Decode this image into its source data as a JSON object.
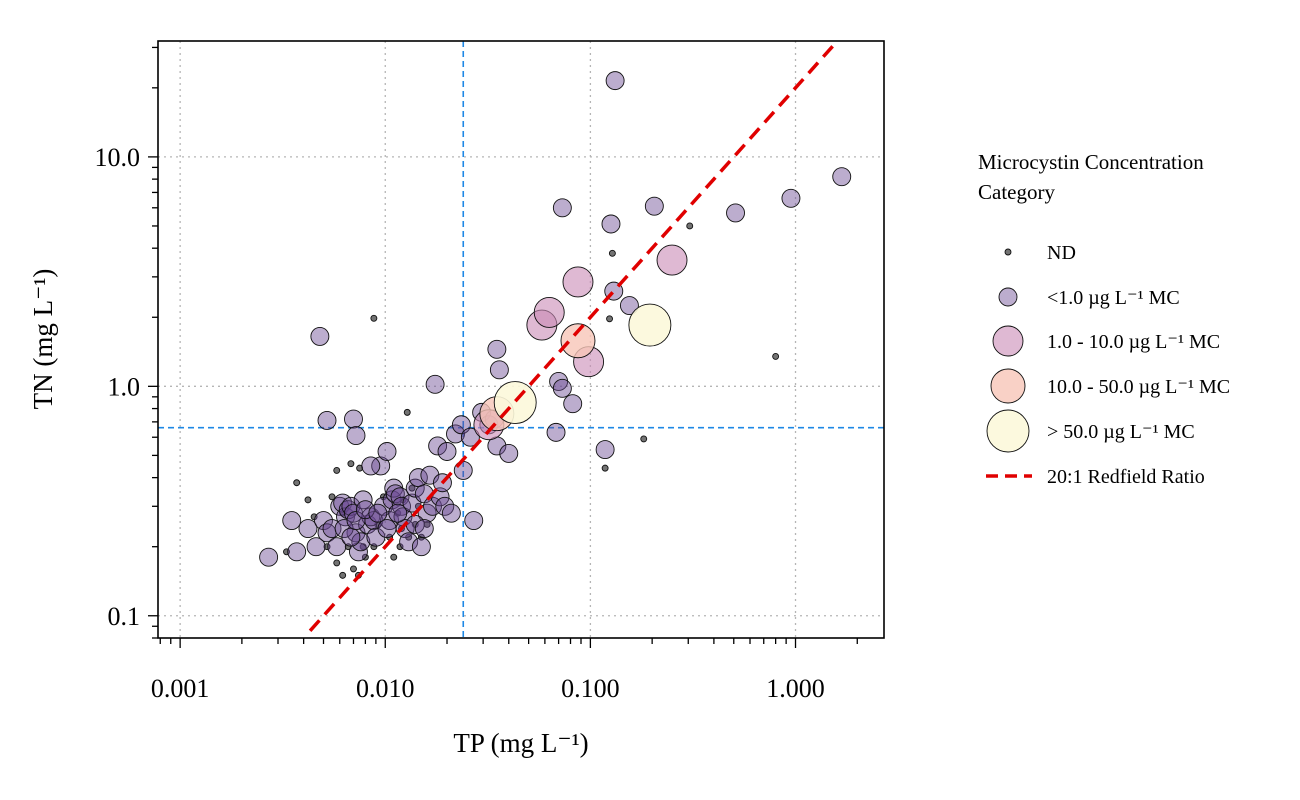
{
  "chart_data": {
    "type": "scatter",
    "xlabel": "TP (mg L⁻¹)",
    "ylabel": "TN (mg L⁻¹)",
    "x_scale": "log",
    "y_scale": "log",
    "xlim": [
      0.00078,
      2.7
    ],
    "ylim": [
      0.08,
      32
    ],
    "x_ticks": [
      "0.001",
      "0.010",
      "0.100",
      "1.000"
    ],
    "y_ticks": [
      "0.1",
      "1.0",
      "10.0"
    ],
    "grid": true,
    "reference_lines": {
      "tp_threshold": 0.024,
      "tn_threshold": 0.66,
      "color": "#1e88e5"
    },
    "redfield_line": {
      "ratio": 20,
      "x_range": [
        0.0043,
        1.6
      ],
      "color": "#e00000"
    },
    "legend": {
      "title": "Microcystin Concentration Category",
      "title_line1": "Microcystin Concentration",
      "title_line2": "Category",
      "placement": "right",
      "entries": [
        {
          "label": "ND",
          "color": "#6b6b6b"
        },
        {
          "label": "<1.0 µg L⁻¹ MC",
          "color": "#8a6aa8"
        },
        {
          "label": "1.0 - 10.0 µg L⁻¹ MC",
          "color": "#d9a6c6"
        },
        {
          "label": "10.0 - 50.0 µg L⁻¹ MC",
          "color": "#f8c6b8"
        },
        {
          "label": "> 50.0 µg L⁻¹ MC",
          "color": "#fcf8da"
        },
        {
          "label": "20:1 Redfield Ratio",
          "color": "#e00000"
        }
      ]
    },
    "series": [
      {
        "name": "ND",
        "points": [
          [
            0.0037,
            0.38
          ],
          [
            0.0042,
            0.32
          ],
          [
            0.0033,
            0.19
          ],
          [
            0.0045,
            0.27
          ],
          [
            0.0052,
            0.2
          ],
          [
            0.0058,
            0.17
          ],
          [
            0.0062,
            0.15
          ],
          [
            0.007,
            0.16
          ],
          [
            0.0074,
            0.15
          ],
          [
            0.008,
            0.18
          ],
          [
            0.0088,
            0.2
          ],
          [
            0.0092,
            0.25
          ],
          [
            0.0105,
            0.22
          ],
          [
            0.011,
            0.18
          ],
          [
            0.0118,
            0.2
          ],
          [
            0.012,
            0.24
          ],
          [
            0.013,
            0.22
          ],
          [
            0.014,
            0.25
          ],
          [
            0.015,
            0.22
          ],
          [
            0.016,
            0.25
          ],
          [
            0.0075,
            0.44
          ],
          [
            0.0068,
            0.46
          ],
          [
            0.0058,
            0.43
          ],
          [
            0.0128,
            0.77
          ],
          [
            0.0088,
            1.98
          ],
          [
            0.118,
            0.44
          ],
          [
            0.124,
            1.97
          ],
          [
            0.128,
            3.8
          ],
          [
            0.182,
            0.59
          ],
          [
            0.305,
            5.0
          ],
          [
            0.8,
            1.35
          ],
          [
            0.0055,
            0.33
          ],
          [
            0.0062,
            0.28
          ],
          [
            0.0115,
            0.28
          ],
          [
            0.0122,
            0.32
          ],
          [
            0.0135,
            0.36
          ],
          [
            0.0145,
            0.3
          ],
          [
            0.0078,
            0.2
          ],
          [
            0.0066,
            0.2
          ],
          [
            0.0098,
            0.33
          ]
        ]
      },
      {
        "name": "<1.0 µg L⁻¹ MC",
        "points": [
          [
            0.0027,
            0.18
          ],
          [
            0.0035,
            0.26
          ],
          [
            0.0037,
            0.19
          ],
          [
            0.0042,
            0.24
          ],
          [
            0.0046,
            0.2
          ],
          [
            0.005,
            0.26
          ],
          [
            0.0052,
            0.23
          ],
          [
            0.0055,
            0.24
          ],
          [
            0.0058,
            0.2
          ],
          [
            0.006,
            0.3
          ],
          [
            0.0062,
            0.31
          ],
          [
            0.0064,
            0.27
          ],
          [
            0.0066,
            0.29
          ],
          [
            0.0068,
            0.3
          ],
          [
            0.007,
            0.28
          ],
          [
            0.0072,
            0.23
          ],
          [
            0.0074,
            0.19
          ],
          [
            0.0076,
            0.21
          ],
          [
            0.0078,
            0.32
          ],
          [
            0.0082,
            0.25
          ],
          [
            0.0085,
            0.27
          ],
          [
            0.0088,
            0.26
          ],
          [
            0.009,
            0.22
          ],
          [
            0.0095,
            0.45
          ],
          [
            0.0098,
            0.3
          ],
          [
            0.0102,
            0.52
          ],
          [
            0.0105,
            0.26
          ],
          [
            0.0108,
            0.32
          ],
          [
            0.011,
            0.36
          ],
          [
            0.0112,
            0.34
          ],
          [
            0.0118,
            0.33
          ],
          [
            0.012,
            0.3
          ],
          [
            0.0122,
            0.27
          ],
          [
            0.0125,
            0.24
          ],
          [
            0.013,
            0.21
          ],
          [
            0.0135,
            0.31
          ],
          [
            0.014,
            0.36
          ],
          [
            0.0145,
            0.4
          ],
          [
            0.015,
            0.2
          ],
          [
            0.0155,
            0.34
          ],
          [
            0.016,
            0.28
          ],
          [
            0.0165,
            0.41
          ],
          [
            0.017,
            0.3
          ],
          [
            0.0175,
            1.02
          ],
          [
            0.018,
            0.55
          ],
          [
            0.0185,
            0.33
          ],
          [
            0.019,
            0.38
          ],
          [
            0.0195,
            0.3
          ],
          [
            0.02,
            0.52
          ],
          [
            0.021,
            0.28
          ],
          [
            0.022,
            0.62
          ],
          [
            0.0235,
            0.68
          ],
          [
            0.024,
            0.43
          ],
          [
            0.026,
            0.6
          ],
          [
            0.027,
            0.26
          ],
          [
            0.0295,
            0.77
          ],
          [
            0.032,
            0.68
          ],
          [
            0.034,
            0.72
          ],
          [
            0.035,
            0.55
          ],
          [
            0.035,
            1.45
          ],
          [
            0.036,
            1.18
          ],
          [
            0.04,
            0.51
          ],
          [
            0.068,
            0.63
          ],
          [
            0.07,
            1.05
          ],
          [
            0.073,
            0.98
          ],
          [
            0.082,
            0.84
          ],
          [
            0.118,
            0.53
          ],
          [
            0.126,
            5.1
          ],
          [
            0.13,
            2.6
          ],
          [
            0.155,
            2.25
          ],
          [
            0.205,
            6.1
          ],
          [
            0.51,
            5.7
          ],
          [
            0.95,
            6.6
          ],
          [
            1.68,
            8.2
          ],
          [
            0.132,
            21.5
          ],
          [
            0.073,
            6.0
          ],
          [
            0.0048,
            1.65
          ],
          [
            0.0052,
            0.71
          ],
          [
            0.007,
            0.72
          ],
          [
            0.0072,
            0.61
          ],
          [
            0.0085,
            0.45
          ],
          [
            0.0063,
            0.24
          ],
          [
            0.0068,
            0.22
          ],
          [
            0.0072,
            0.26
          ],
          [
            0.008,
            0.29
          ],
          [
            0.0092,
            0.28
          ],
          [
            0.0102,
            0.24
          ],
          [
            0.0115,
            0.28
          ],
          [
            0.014,
            0.25
          ],
          [
            0.0155,
            0.24
          ]
        ]
      },
      {
        "name": "1.0 - 10.0 µg L⁻¹ MC",
        "points": [
          [
            0.058,
            1.85
          ],
          [
            0.063,
            2.1
          ],
          [
            0.087,
            2.85
          ],
          [
            0.098,
            1.28
          ],
          [
            0.25,
            3.55
          ],
          [
            0.032,
            0.68
          ]
        ]
      },
      {
        "name": "10.0 - 50.0 µg L⁻¹ MC",
        "points": [
          [
            0.087,
            1.58
          ],
          [
            0.035,
            0.76
          ]
        ]
      },
      {
        "name": "> 50.0 µg L⁻¹ MC",
        "points": [
          [
            0.043,
            0.85
          ],
          [
            0.195,
            1.85
          ]
        ]
      }
    ]
  }
}
